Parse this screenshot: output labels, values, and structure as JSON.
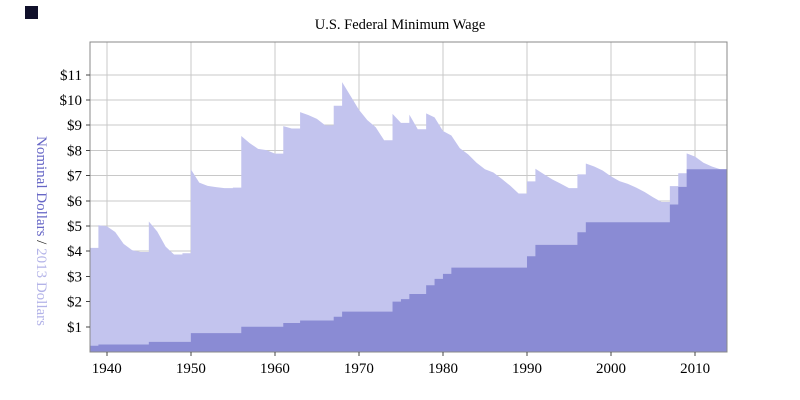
{
  "title": "U.S. Federal Minimum Wage",
  "y_axis_label": {
    "nominal": "Nominal Dollars",
    "separator": " / ",
    "real": "2013 Dollars"
  },
  "colors": {
    "real_area": "#c3c4ee",
    "nominal_area": "#8a8bd4",
    "nominal_label": "#6767c6",
    "real_label": "#b3b3e8",
    "grid": "#c8c8c8",
    "border": "#888888",
    "text": "#000000",
    "corner_mark": "#10102a"
  },
  "chart_data": {
    "type": "area",
    "title": "U.S. Federal Minimum Wage",
    "xlabel": "",
    "ylabel": "Nominal Dollars / 2013 Dollars",
    "legend": "none",
    "grid": true,
    "xlim": [
      1938,
      2013.8
    ],
    "ylim": [
      0,
      12.3
    ],
    "xticks": [
      1940,
      1950,
      1960,
      1970,
      1980,
      1990,
      2000,
      2010
    ],
    "xtick_labels": [
      "1940",
      "1950",
      "1960",
      "1970",
      "1980",
      "1990",
      "2000",
      "2010"
    ],
    "ytick_values": [
      1,
      2,
      3,
      4,
      5,
      6,
      7,
      8,
      9,
      10,
      11
    ],
    "ytick_labels": [
      "$1",
      "$2",
      "$3",
      "$4",
      "$5",
      "$6",
      "$7",
      "$8",
      "$9",
      "$10",
      "$11"
    ],
    "x_years": [
      1938,
      1939,
      1940,
      1941,
      1942,
      1943,
      1944,
      1945,
      1946,
      1947,
      1948,
      1949,
      1950,
      1951,
      1952,
      1953,
      1954,
      1955,
      1956,
      1957,
      1958,
      1959,
      1960,
      1961,
      1962,
      1963,
      1964,
      1965,
      1966,
      1967,
      1968,
      1969,
      1970,
      1971,
      1972,
      1973,
      1974,
      1975,
      1976,
      1977,
      1978,
      1979,
      1980,
      1981,
      1982,
      1983,
      1984,
      1985,
      1986,
      1987,
      1988,
      1989,
      1990,
      1991,
      1992,
      1993,
      1994,
      1995,
      1996,
      1997,
      1998,
      1999,
      2000,
      2001,
      2002,
      2003,
      2004,
      2005,
      2006,
      2007,
      2008,
      2009,
      2010,
      2011,
      2012,
      2013
    ],
    "series": [
      {
        "name": "2013 Dollars",
        "role": "real",
        "values": [
          4.13,
          5.03,
          4.99,
          4.76,
          4.29,
          4.04,
          3.97,
          5.18,
          4.78,
          4.18,
          3.87,
          3.92,
          7.25,
          6.72,
          6.59,
          6.54,
          6.5,
          6.52,
          8.57,
          8.29,
          8.06,
          8.01,
          7.87,
          8.96,
          8.87,
          9.52,
          9.4,
          9.25,
          8.99,
          9.77,
          10.71,
          10.16,
          9.61,
          9.2,
          8.92,
          8.4,
          9.45,
          9.09,
          9.42,
          8.84,
          9.47,
          9.31,
          8.77,
          8.59,
          8.09,
          7.84,
          7.51,
          7.25,
          7.12,
          6.87,
          6.6,
          6.29,
          6.77,
          7.27,
          7.06,
          6.85,
          6.68,
          6.5,
          7.05,
          7.48,
          7.36,
          7.2,
          6.97,
          6.78,
          6.67,
          6.52,
          6.35,
          6.14,
          5.95,
          6.58,
          7.09,
          7.88,
          7.75,
          7.51,
          7.36,
          7.25
        ]
      },
      {
        "name": "Nominal Dollars",
        "role": "nominal",
        "values": [
          0.25,
          0.3,
          0.3,
          0.3,
          0.3,
          0.3,
          0.3,
          0.4,
          0.4,
          0.4,
          0.4,
          0.4,
          0.75,
          0.75,
          0.75,
          0.75,
          0.75,
          0.75,
          1.0,
          1.0,
          1.0,
          1.0,
          1.0,
          1.15,
          1.15,
          1.25,
          1.25,
          1.25,
          1.25,
          1.4,
          1.6,
          1.6,
          1.6,
          1.6,
          1.6,
          1.6,
          2.0,
          2.1,
          2.3,
          2.3,
          2.65,
          2.9,
          3.1,
          3.35,
          3.35,
          3.35,
          3.35,
          3.35,
          3.35,
          3.35,
          3.35,
          3.35,
          3.8,
          4.25,
          4.25,
          4.25,
          4.25,
          4.25,
          4.75,
          5.15,
          5.15,
          5.15,
          5.15,
          5.15,
          5.15,
          5.15,
          5.15,
          5.15,
          5.15,
          5.85,
          6.55,
          7.25,
          7.25,
          7.25,
          7.25,
          7.25
        ]
      }
    ]
  }
}
